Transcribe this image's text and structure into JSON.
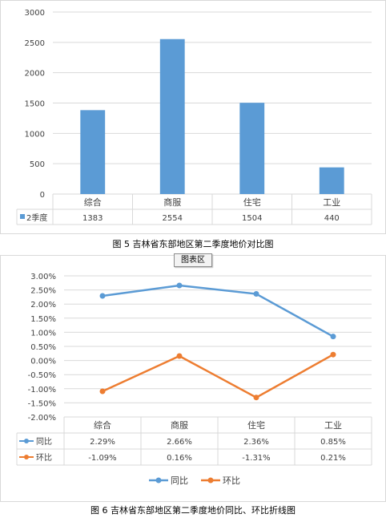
{
  "chart_data": [
    {
      "type": "bar",
      "categories": [
        "综合",
        "商服",
        "住宅",
        "工业"
      ],
      "series": [
        {
          "name": "2季度",
          "values": [
            1383,
            2554,
            1504,
            440
          ],
          "color": "#5b9bd5"
        }
      ],
      "ylim": [
        0,
        3000
      ],
      "yticks": [
        0,
        500,
        1000,
        1500,
        2000,
        2500,
        3000
      ],
      "grid": true,
      "data_table": true,
      "xlabel": "",
      "ylabel": ""
    },
    {
      "type": "line",
      "categories": [
        "综合",
        "商服",
        "住宅",
        "工业"
      ],
      "series": [
        {
          "name": "同比",
          "values": [
            2.29,
            2.66,
            2.36,
            0.85
          ],
          "labels": [
            "2.29%",
            "2.66%",
            "2.36%",
            "0.85%"
          ],
          "color": "#5b9bd5"
        },
        {
          "name": "环比",
          "values": [
            -1.09,
            0.16,
            -1.31,
            0.21
          ],
          "labels": [
            "-1.09%",
            "0.16%",
            "-1.31%",
            "0.21%"
          ],
          "color": "#ed7d31"
        }
      ],
      "ylim": [
        -2,
        3
      ],
      "yticks": [
        -2.0,
        -1.5,
        -1.0,
        -0.5,
        0.0,
        0.5,
        1.0,
        1.5,
        2.0,
        2.5,
        3.0
      ],
      "ytick_labels": [
        "-2.00%",
        "-1.50%",
        "-1.00%",
        "-0.50%",
        "0.00%",
        "0.50%",
        "1.00%",
        "1.50%",
        "2.00%",
        "2.50%",
        "3.00%"
      ],
      "grid": true,
      "data_table": true,
      "legend": "bottom",
      "xlabel": "",
      "ylabel": ""
    }
  ],
  "captions": {
    "fig5": "图 5  吉林省东部地区第二季度地价对比图",
    "fig6": "图 6  吉林省东部地区第二季度地价同比、环比折线图"
  },
  "tooltip": "图表区"
}
